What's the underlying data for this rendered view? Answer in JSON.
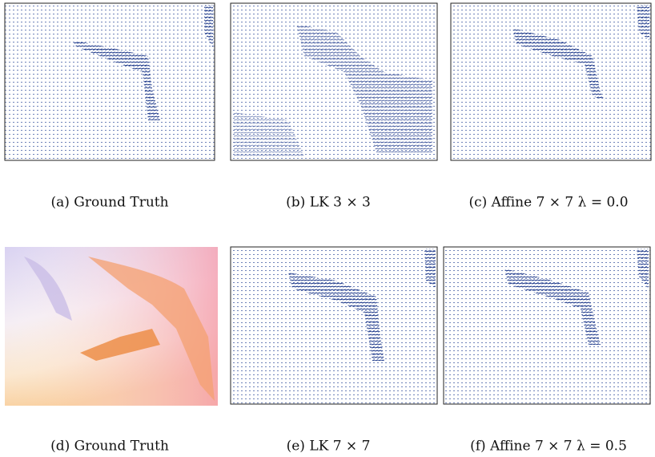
{
  "figure": {
    "panels": [
      {
        "caption": "(a) Ground Truth"
      },
      {
        "caption": "(b) LK 3 × 3"
      },
      {
        "caption": "(c) Affine 7 × 7 λ = 0.0"
      },
      {
        "caption": "(d) Ground Truth"
      },
      {
        "caption": "(e) LK 7 × 7"
      },
      {
        "caption": "(f) Affine 7 × 7 λ = 0.5"
      }
    ]
  }
}
